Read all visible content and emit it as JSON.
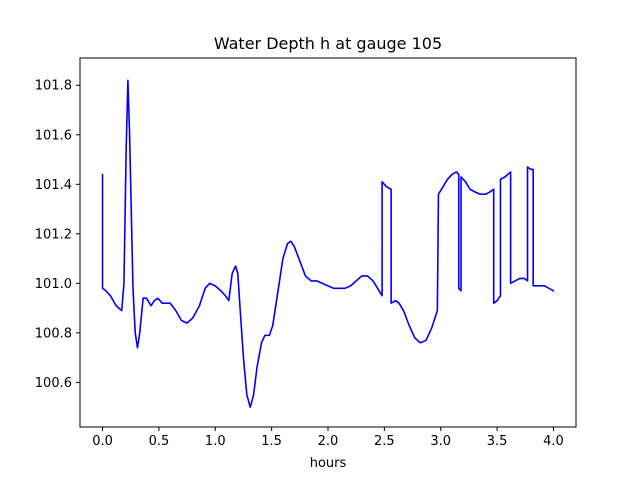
{
  "chart_data": {
    "type": "line",
    "title": "Water Depth h at gauge 105",
    "xlabel": "hours",
    "ylabel": "",
    "xlim": [
      -0.2,
      4.2
    ],
    "ylim": [
      100.42,
      101.91
    ],
    "grid": false,
    "x_ticks": [
      0.0,
      0.5,
      1.0,
      1.5,
      2.0,
      2.5,
      3.0,
      3.5,
      4.0
    ],
    "x_tick_labels": [
      "0.0",
      "0.5",
      "1.0",
      "1.5",
      "2.0",
      "2.5",
      "3.0",
      "3.5",
      "4.0"
    ],
    "y_ticks": [
      100.6,
      100.8,
      101.0,
      101.2,
      101.4,
      101.6,
      101.8
    ],
    "y_tick_labels": [
      "100.6",
      "100.8",
      "101.0",
      "101.2",
      "101.4",
      "101.6",
      "101.8"
    ],
    "series": [
      {
        "color": "#0000ff",
        "points": [
          [
            0.0,
            101.44
          ],
          [
            0.0,
            100.98
          ],
          [
            0.03,
            100.97
          ],
          [
            0.07,
            100.95
          ],
          [
            0.12,
            100.91
          ],
          [
            0.17,
            100.89
          ],
          [
            0.19,
            101.0
          ],
          [
            0.21,
            101.55
          ],
          [
            0.225,
            101.82
          ],
          [
            0.24,
            101.6
          ],
          [
            0.27,
            100.98
          ],
          [
            0.29,
            100.8
          ],
          [
            0.31,
            100.74
          ],
          [
            0.33,
            100.8
          ],
          [
            0.36,
            100.94
          ],
          [
            0.39,
            100.94
          ],
          [
            0.43,
            100.91
          ],
          [
            0.46,
            100.93
          ],
          [
            0.49,
            100.94
          ],
          [
            0.53,
            100.92
          ],
          [
            0.6,
            100.92
          ],
          [
            0.65,
            100.89
          ],
          [
            0.7,
            100.85
          ],
          [
            0.75,
            100.84
          ],
          [
            0.8,
            100.86
          ],
          [
            0.86,
            100.91
          ],
          [
            0.91,
            100.98
          ],
          [
            0.95,
            101.0
          ],
          [
            1.0,
            100.99
          ],
          [
            1.05,
            100.97
          ],
          [
            1.09,
            100.95
          ],
          [
            1.12,
            100.93
          ],
          [
            1.15,
            101.04
          ],
          [
            1.18,
            101.07
          ],
          [
            1.2,
            101.04
          ],
          [
            1.22,
            100.9
          ],
          [
            1.25,
            100.7
          ],
          [
            1.28,
            100.55
          ],
          [
            1.31,
            100.5
          ],
          [
            1.34,
            100.55
          ],
          [
            1.37,
            100.66
          ],
          [
            1.41,
            100.76
          ],
          [
            1.44,
            100.79
          ],
          [
            1.48,
            100.79
          ],
          [
            1.51,
            100.83
          ],
          [
            1.55,
            100.95
          ],
          [
            1.6,
            101.1
          ],
          [
            1.64,
            101.16
          ],
          [
            1.67,
            101.17
          ],
          [
            1.7,
            101.15
          ],
          [
            1.75,
            101.09
          ],
          [
            1.8,
            101.03
          ],
          [
            1.85,
            101.01
          ],
          [
            1.9,
            101.01
          ],
          [
            1.95,
            101.0
          ],
          [
            2.0,
            100.99
          ],
          [
            2.05,
            100.98
          ],
          [
            2.1,
            100.98
          ],
          [
            2.15,
            100.98
          ],
          [
            2.2,
            100.99
          ],
          [
            2.25,
            101.01
          ],
          [
            2.3,
            101.03
          ],
          [
            2.35,
            101.03
          ],
          [
            2.4,
            101.01
          ],
          [
            2.44,
            100.98
          ],
          [
            2.48,
            100.95
          ],
          [
            2.48,
            101.41
          ],
          [
            2.52,
            101.39
          ],
          [
            2.56,
            101.38
          ],
          [
            2.56,
            100.92
          ],
          [
            2.6,
            100.93
          ],
          [
            2.63,
            100.92
          ],
          [
            2.67,
            100.89
          ],
          [
            2.72,
            100.83
          ],
          [
            2.77,
            100.78
          ],
          [
            2.82,
            100.76
          ],
          [
            2.87,
            100.77
          ],
          [
            2.92,
            100.82
          ],
          [
            2.97,
            100.89
          ],
          [
            2.98,
            101.36
          ],
          [
            3.02,
            101.39
          ],
          [
            3.06,
            101.42
          ],
          [
            3.1,
            101.44
          ],
          [
            3.14,
            101.45
          ],
          [
            3.16,
            101.44
          ],
          [
            3.16,
            100.98
          ],
          [
            3.18,
            100.97
          ],
          [
            3.18,
            101.43
          ],
          [
            3.22,
            101.41
          ],
          [
            3.26,
            101.38
          ],
          [
            3.3,
            101.37
          ],
          [
            3.35,
            101.36
          ],
          [
            3.4,
            101.36
          ],
          [
            3.44,
            101.37
          ],
          [
            3.47,
            101.38
          ],
          [
            3.47,
            100.92
          ],
          [
            3.5,
            100.93
          ],
          [
            3.53,
            100.95
          ],
          [
            3.53,
            101.42
          ],
          [
            3.57,
            101.43
          ],
          [
            3.62,
            101.45
          ],
          [
            3.62,
            101.0
          ],
          [
            3.66,
            101.01
          ],
          [
            3.7,
            101.02
          ],
          [
            3.74,
            101.02
          ],
          [
            3.77,
            101.01
          ],
          [
            3.77,
            101.47
          ],
          [
            3.8,
            101.46
          ],
          [
            3.82,
            101.46
          ],
          [
            3.82,
            100.99
          ],
          [
            3.87,
            100.99
          ],
          [
            3.92,
            100.99
          ],
          [
            3.96,
            100.98
          ],
          [
            4.0,
            100.97
          ]
        ]
      }
    ]
  }
}
